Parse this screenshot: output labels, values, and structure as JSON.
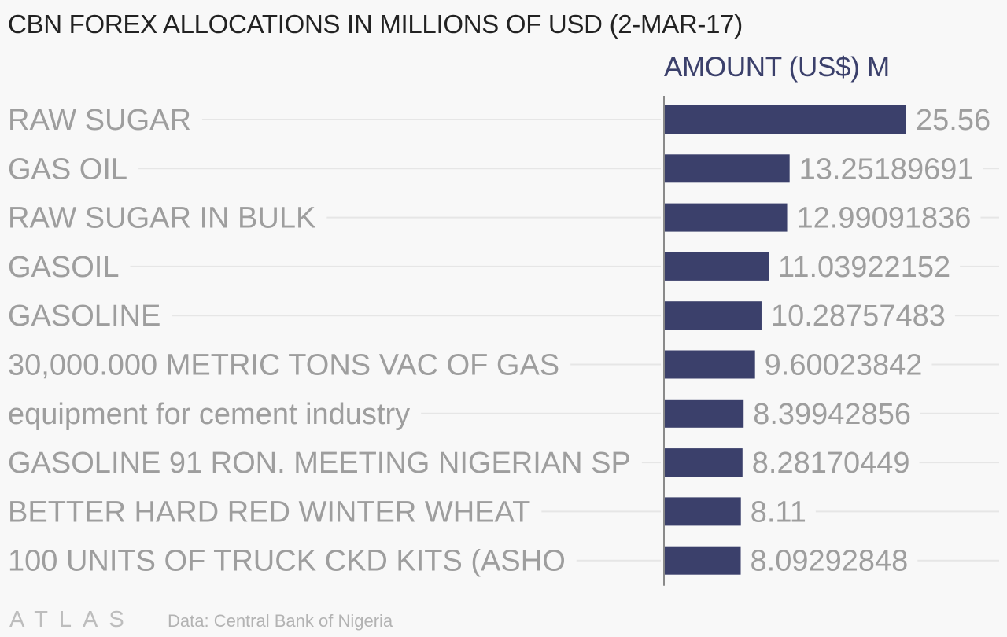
{
  "chart_data": {
    "type": "bar",
    "orientation": "horizontal",
    "title": "CBN FOREX ALLOCATIONS IN MILLIONS OF USD (2-MAR-17)",
    "value_header": "AMOUNT (US$) M",
    "categories": [
      "RAW SUGAR",
      "GAS OIL",
      "RAW SUGAR IN BULK",
      "GASOIL",
      "GASOLINE",
      "30,000.000 METRIC TONS VAC OF GAS",
      "equipment for cement industry",
      "GASOLINE 91 RON. MEETING NIGERIAN SP",
      "BETTER HARD RED WINTER WHEAT",
      "100 UNITS OF TRUCK CKD KITS (ASHO"
    ],
    "values": [
      25.56,
      13.25189691,
      12.99091836,
      11.03922152,
      10.28757483,
      9.60023842,
      8.39942856,
      8.28170449,
      8.11,
      8.09292848
    ],
    "value_labels": [
      "25.56",
      "13.25189691",
      "12.99091836",
      "11.03922152",
      "10.28757483",
      "9.60023842",
      "8.39942856",
      "8.28170449",
      "8.11",
      "8.09292848"
    ],
    "xlim": [
      0,
      25.56
    ],
    "bar_color": "#3b406b",
    "grid": false
  },
  "footer": {
    "logo": "ATLAS",
    "source": "Data: Central Bank of Nigeria"
  }
}
